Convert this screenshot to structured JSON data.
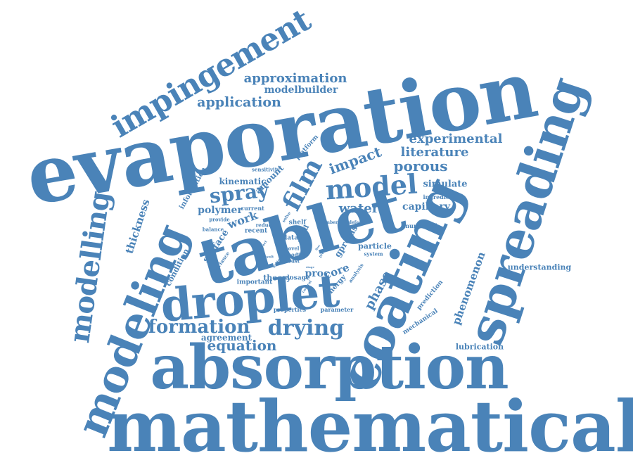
{
  "cloud": {
    "color": "#4a83b8",
    "words": [
      {
        "text": "evaporation"
      },
      {
        "text": "mathematical"
      },
      {
        "text": "absorption"
      },
      {
        "text": "tablet"
      },
      {
        "text": "coating"
      },
      {
        "text": "spreading"
      },
      {
        "text": "modeling"
      },
      {
        "text": "droplet"
      },
      {
        "text": "impingement"
      },
      {
        "text": "modelling"
      },
      {
        "text": "model"
      },
      {
        "text": "drying"
      },
      {
        "text": "formation"
      },
      {
        "text": "film"
      },
      {
        "text": "spray"
      },
      {
        "text": "approximation"
      },
      {
        "text": "modelbuilder"
      },
      {
        "text": "application"
      },
      {
        "text": "experimental"
      },
      {
        "text": "literature"
      },
      {
        "text": "porous"
      },
      {
        "text": "impact"
      },
      {
        "text": "kinematic"
      },
      {
        "text": "water"
      },
      {
        "text": "polymer"
      },
      {
        "text": "work"
      },
      {
        "text": "equation"
      },
      {
        "text": "agreement"
      },
      {
        "text": "simulate"
      },
      {
        "text": "capillary"
      },
      {
        "text": "phenomenon"
      },
      {
        "text": "understanding"
      },
      {
        "text": "lubrication"
      },
      {
        "text": "phase"
      },
      {
        "text": "thickness"
      },
      {
        "text": "surface"
      },
      {
        "text": "amount"
      },
      {
        "text": "information"
      },
      {
        "text": "platform"
      },
      {
        "text": "sensitivity"
      },
      {
        "text": "current"
      },
      {
        "text": "provide"
      },
      {
        "text": "balance"
      },
      {
        "text": "variance"
      },
      {
        "text": "reduce"
      },
      {
        "text": "recent"
      },
      {
        "text": "condition"
      },
      {
        "text": "important"
      },
      {
        "text": "theory"
      },
      {
        "text": "dosage"
      },
      {
        "text": "proc"
      },
      {
        "text": "core"
      },
      {
        "text": "properties"
      },
      {
        "text": "parameter"
      },
      {
        "text": "particle"
      },
      {
        "text": "system"
      },
      {
        "text": "numerical"
      },
      {
        "text": "ingredient"
      },
      {
        "text": "prediction"
      },
      {
        "text": "mechanical"
      },
      {
        "text": "energy"
      },
      {
        "text": "analysis"
      },
      {
        "text": "gproms"
      },
      {
        "text": "shelf"
      },
      {
        "text": "solid"
      },
      {
        "text": "data"
      },
      {
        "text": "novel"
      },
      {
        "text": "good"
      },
      {
        "text": "crust"
      },
      {
        "text": "solve"
      },
      {
        "text": "number"
      },
      {
        "text": "defective"
      },
      {
        "text": "result"
      },
      {
        "text": "interact"
      },
      {
        "text": "optimal"
      },
      {
        "text": "control"
      },
      {
        "text": "stage"
      },
      {
        "text": "predict"
      },
      {
        "text": "effect"
      },
      {
        "text": "flow"
      },
      {
        "text": "level"
      }
    ]
  }
}
